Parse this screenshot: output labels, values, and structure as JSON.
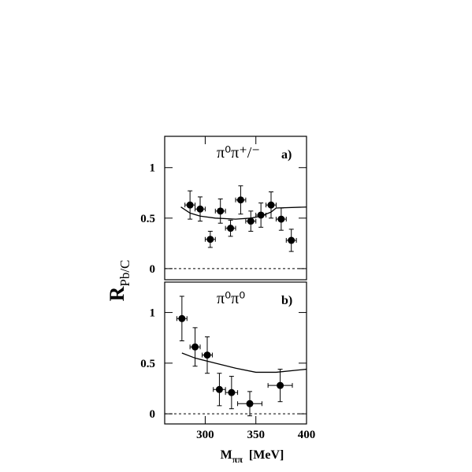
{
  "chart_data": [
    {
      "type": "scatter",
      "label": "π⁰π⁺/⁻",
      "panel": "a)",
      "ylabel": "R",
      "ylabel_sub": "Pb/C",
      "xlim": [
        260,
        400
      ],
      "ylim": [
        -0.11,
        1.31
      ],
      "yticks": [
        0,
        0.5,
        1
      ],
      "hline": 0,
      "color": "#000000",
      "points": {
        "x": [
          285,
          295,
          305,
          315,
          325,
          335,
          345,
          355,
          365,
          375,
          385
        ],
        "y": [
          0.63,
          0.59,
          0.29,
          0.57,
          0.4,
          0.68,
          0.47,
          0.53,
          0.63,
          0.49,
          0.28
        ],
        "xerr": [
          5,
          5,
          5,
          5,
          5,
          5,
          5,
          5,
          5,
          5,
          5
        ],
        "yerr": [
          0.14,
          0.12,
          0.08,
          0.12,
          0.08,
          0.14,
          0.1,
          0.12,
          0.13,
          0.11,
          0.11
        ]
      },
      "curve": {
        "x": [
          276,
          285,
          295,
          310,
          330,
          345,
          355,
          365,
          370,
          400
        ],
        "y": [
          0.61,
          0.55,
          0.52,
          0.5,
          0.49,
          0.5,
          0.52,
          0.56,
          0.6,
          0.61
        ]
      }
    },
    {
      "type": "scatter",
      "label": "π⁰π⁰",
      "panel": "b)",
      "xlabel": "M",
      "xlabel_sub": "ππ",
      "xlabel_unit": "[MeV]",
      "xlim": [
        260,
        400
      ],
      "xticks": [
        300,
        350,
        400
      ],
      "ylim": [
        -0.1,
        1.3
      ],
      "yticks": [
        0,
        0.5,
        1
      ],
      "hline": 0,
      "color": "#000000",
      "points": {
        "x": [
          277,
          290,
          302,
          314,
          326,
          344,
          374
        ],
        "y": [
          0.94,
          0.66,
          0.58,
          0.24,
          0.21,
          0.1,
          0.28
        ],
        "xerr": [
          5,
          5,
          5,
          6,
          6,
          12,
          12
        ],
        "yerr": [
          0.22,
          0.19,
          0.18,
          0.16,
          0.16,
          0.12,
          0.16
        ]
      },
      "curve": {
        "x": [
          277,
          290,
          310,
          330,
          350,
          370,
          400
        ],
        "y": [
          0.6,
          0.55,
          0.5,
          0.45,
          0.41,
          0.41,
          0.44
        ]
      }
    }
  ]
}
